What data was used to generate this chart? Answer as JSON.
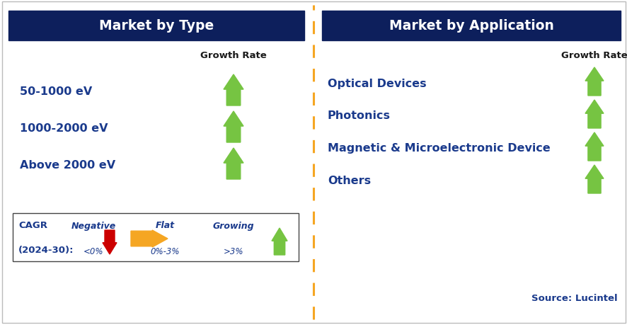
{
  "left_title": "Market by Type",
  "right_title": "Market by Application",
  "header_bg_color": "#0d1f5c",
  "header_text_color": "#ffffff",
  "label_text_color": "#1a3a8c",
  "growth_rate_color": "#1a1a1a",
  "left_items": [
    "50-1000 eV",
    "1000-2000 eV",
    "Above 2000 eV"
  ],
  "right_items": [
    "Optical Devices",
    "Photonics",
    "Magnetic & Microelectronic Device",
    "Others"
  ],
  "green_arrow_color": "#76c442",
  "red_arrow_color": "#cc0000",
  "orange_arrow_color": "#f5a623",
  "divider_color": "#f5a623",
  "legend_box_color": "#444444",
  "source_text": "Source: Lucintel",
  "background_color": "#ffffff",
  "border_color": "#bbbbbb",
  "fig_width": 8.87,
  "fig_height": 4.6,
  "dpi": 100
}
